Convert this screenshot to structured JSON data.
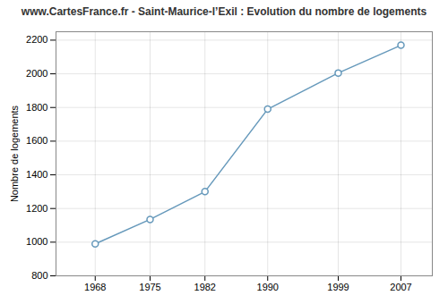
{
  "chart_data": {
    "type": "line",
    "title": "www.CartesFrance.fr - Saint-Maurice-l’Exil : Evolution du nombre de logements",
    "ylabel": "Nombre de logements",
    "x": [
      1968,
      1975,
      1982,
      1990,
      1999,
      2007
    ],
    "values": [
      990,
      1135,
      1300,
      1790,
      2005,
      2170
    ],
    "xlim": [
      1963,
      2011
    ],
    "ylim": [
      800,
      2250
    ],
    "xticks": [
      1968,
      1975,
      1982,
      1990,
      1999,
      2007
    ],
    "yticks": [
      800,
      1000,
      1200,
      1400,
      1600,
      1800,
      2000,
      2200
    ],
    "color": "#6699bb",
    "marker": "circle",
    "grid": true
  }
}
